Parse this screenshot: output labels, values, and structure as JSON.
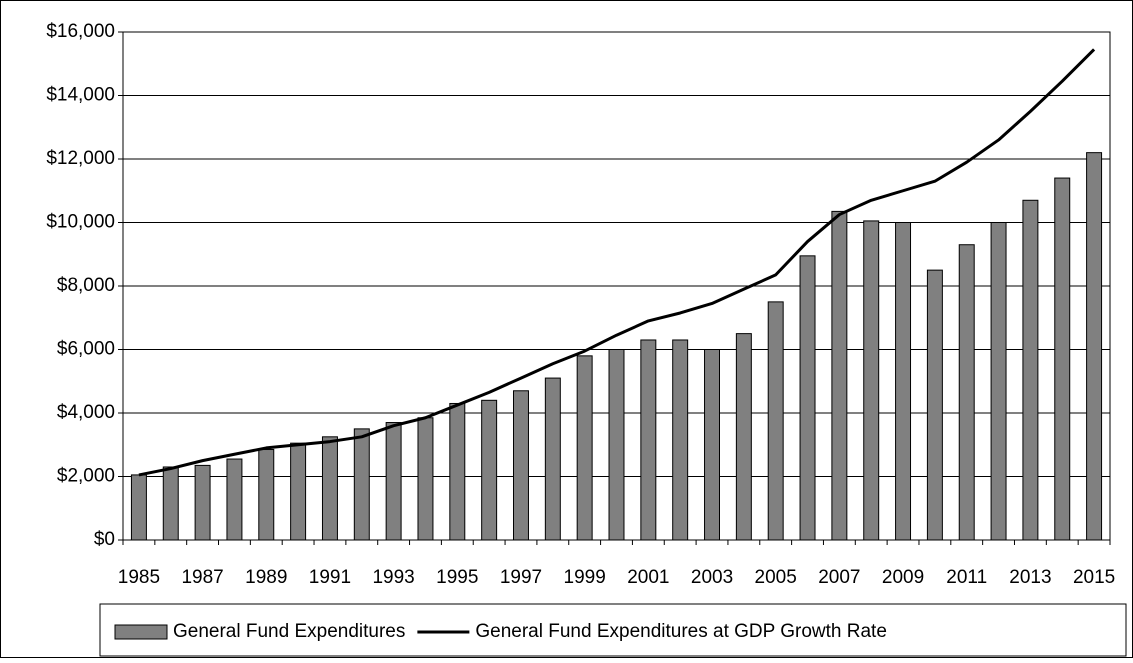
{
  "chart_data": {
    "type": "bar-line",
    "categories": [
      "1985",
      null,
      "1987",
      null,
      "1989",
      null,
      "1991",
      null,
      "1993",
      null,
      "1995",
      null,
      "1997",
      null,
      "1999",
      null,
      "2001",
      null,
      "2003",
      null,
      "2005",
      null,
      "2007",
      null,
      "2009",
      null,
      "2011",
      null,
      "2013",
      null,
      "2015"
    ],
    "series": [
      {
        "name": "General Fund Expenditures",
        "type": "bar",
        "color": "#808080",
        "values": [
          2050,
          2300,
          2350,
          2550,
          2850,
          3050,
          3250,
          3500,
          3700,
          3850,
          4300,
          4400,
          4700,
          5100,
          5800,
          6000,
          6300,
          6300,
          6000,
          6500,
          7500,
          8950,
          10350,
          10050,
          10000,
          8500,
          9300,
          10000,
          10700,
          11400,
          12200
        ]
      },
      {
        "name": "General Fund Expenditures at GDP Growth Rate",
        "type": "line",
        "color": "#000000",
        "values": [
          2050,
          2250,
          2500,
          2700,
          2900,
          3000,
          3100,
          3250,
          3600,
          3850,
          4250,
          4650,
          5100,
          5550,
          5950,
          6450,
          6900,
          7150,
          7450,
          7900,
          8350,
          9400,
          10250,
          10700,
          11000,
          11300,
          11900,
          12600,
          13500,
          14450,
          15450
        ]
      }
    ],
    "ylim": [
      0,
      16000
    ],
    "yticks": [
      {
        "value": 0,
        "label": "$0"
      },
      {
        "value": 2000,
        "label": "$2,000"
      },
      {
        "value": 4000,
        "label": "$4,000"
      },
      {
        "value": 6000,
        "label": "$6,000"
      },
      {
        "value": 8000,
        "label": "$8,000"
      },
      {
        "value": 10000,
        "label": "$10,000"
      },
      {
        "value": 12000,
        "label": "$12,000"
      },
      {
        "value": 14000,
        "label": "$14,000"
      },
      {
        "value": 16000,
        "label": "$16,000"
      }
    ],
    "grid": true,
    "legend": "bottom"
  }
}
